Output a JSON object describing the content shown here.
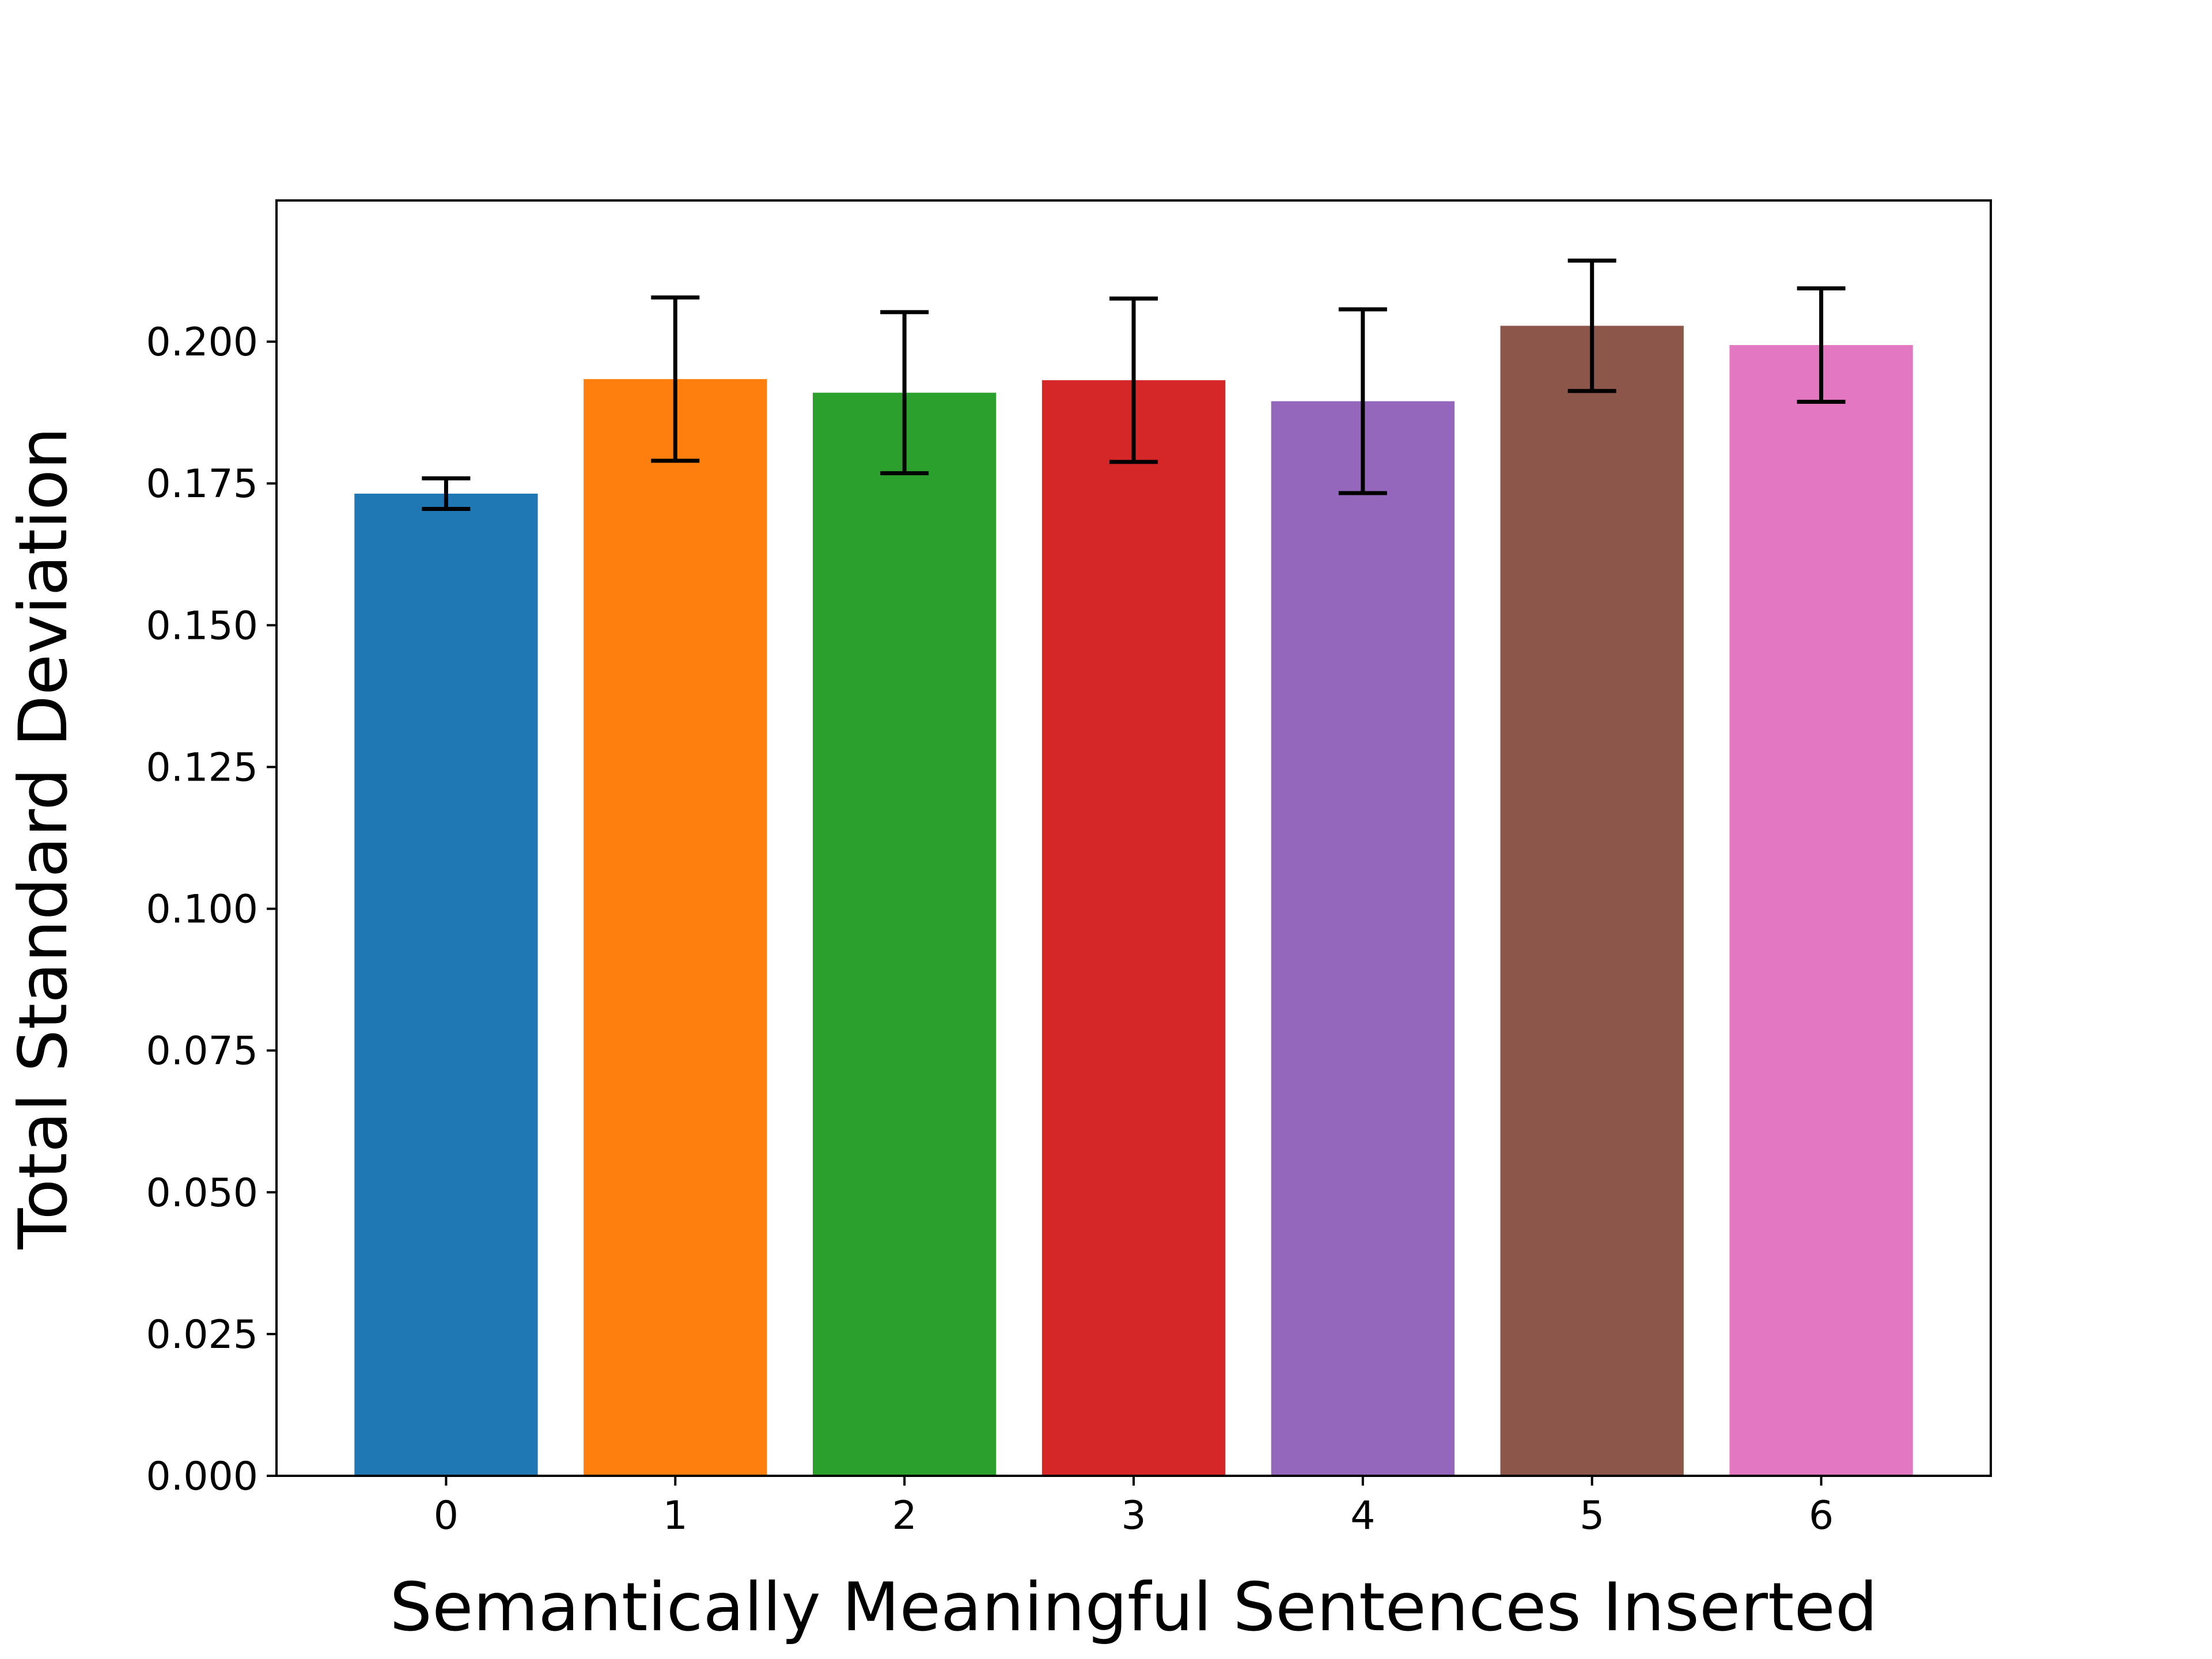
{
  "chart_data": {
    "type": "bar",
    "title": "",
    "xlabel": "Semantically Meaningful Sentences Inserted",
    "ylabel": "Total Standard Deviation",
    "categories": [
      "0",
      "1",
      "2",
      "3",
      "4",
      "5",
      "6"
    ],
    "values": [
      0.1732,
      0.1934,
      0.191,
      0.1932,
      0.1895,
      0.2028,
      0.1994
    ],
    "errors": [
      0.0027,
      0.0144,
      0.0142,
      0.0144,
      0.0162,
      0.0115,
      0.01
    ],
    "colors": [
      "#1f77b4",
      "#ff7f0e",
      "#2ca02c",
      "#d62728",
      "#9467bd",
      "#8c564b",
      "#e377c2"
    ],
    "ylim": [
      0,
      0.2249
    ],
    "xlim": [
      -0.74,
      6.74
    ],
    "yticks": [
      "0.000",
      "0.025",
      "0.050",
      "0.075",
      "0.100",
      "0.125",
      "0.150",
      "0.175",
      "0.200"
    ],
    "grid": false,
    "legend": "none"
  }
}
